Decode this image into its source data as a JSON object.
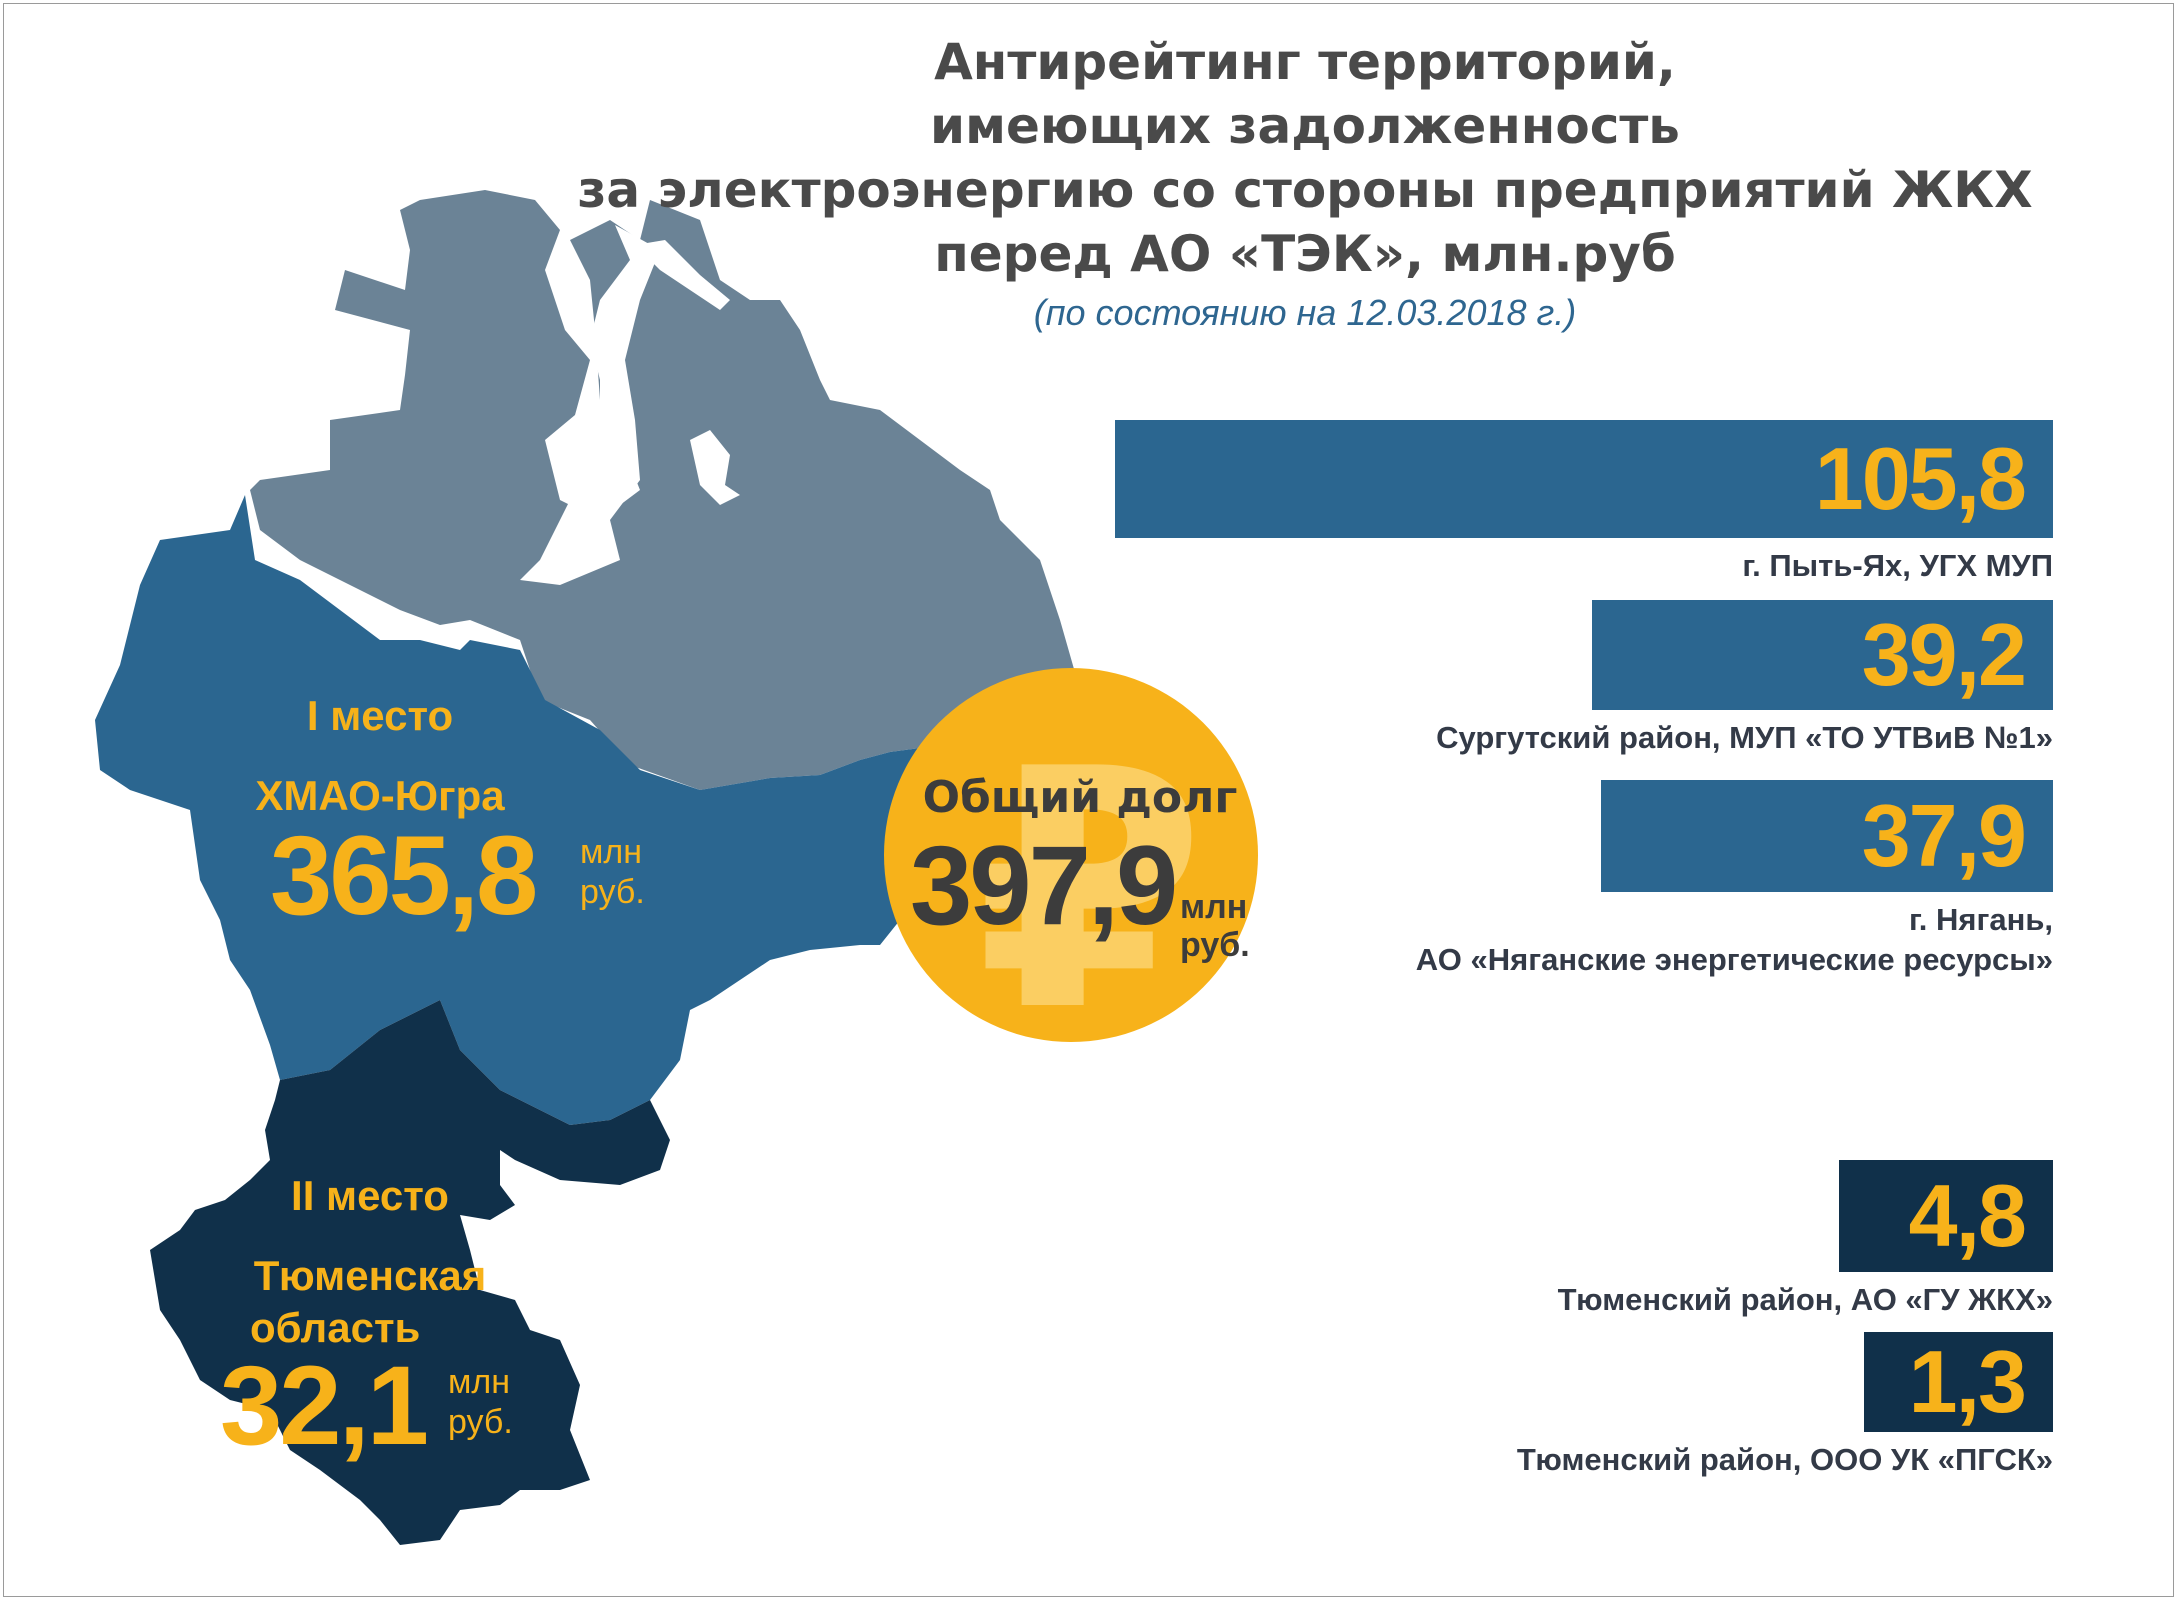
{
  "title": {
    "lines": [
      "Антирейтинг территорий,",
      "имеющих задолженность",
      "за электроэнергию со стороны предприятий ЖКХ",
      "перед АО «ТЭК», млн.руб"
    ],
    "subtitle": "(по состоянию на 12.03.2018 г.)"
  },
  "map": {
    "regions": [
      {
        "place": "I место",
        "name": "ХМАО-Югра",
        "value": "365,8",
        "unit_top": "млн",
        "unit_bottom": "руб."
      },
      {
        "place": "II место",
        "line1": "Тюменская",
        "line2": "область",
        "value": "32,1",
        "unit_top": "млн",
        "unit_bottom": "руб."
      }
    ],
    "total": {
      "label": "Общий долг",
      "value": "397,9",
      "unit_top": "млн",
      "unit_bottom": "руб.",
      "symbol": "₽"
    }
  },
  "colors": {
    "yamal": "#6b8396",
    "khmao": "#2b6690",
    "tyumen": "#10304a",
    "accent": "#f7b21a",
    "bar_khmao": "#2b6690",
    "bar_tyumen": "#10304a"
  },
  "chart_data": {
    "type": "bar",
    "orientation": "horizontal",
    "series": [
      {
        "value": 105.8,
        "value_label": "105,8",
        "label_lines": [
          "г. Пыть-Ях, УГХ МУП"
        ],
        "region": "khmao"
      },
      {
        "value": 39.2,
        "value_label": "39,2",
        "label_lines": [
          "Сургутский район, МУП «ТО УТВиВ №1»"
        ],
        "region": "khmao"
      },
      {
        "value": 37.9,
        "value_label": "37,9",
        "label_lines": [
          "г. Нягань,",
          "АО «Няганские энергетические ресурсы»"
        ],
        "region": "khmao"
      },
      {
        "value": 4.8,
        "value_label": "4,8",
        "label_lines": [
          "Тюменский район, АО «ГУ ЖКХ»"
        ],
        "region": "tyumen"
      },
      {
        "value": 1.3,
        "value_label": "1,3",
        "label_lines": [
          "Тюменский район, ООО УК «ПГСК»"
        ],
        "region": "tyumen"
      }
    ]
  }
}
